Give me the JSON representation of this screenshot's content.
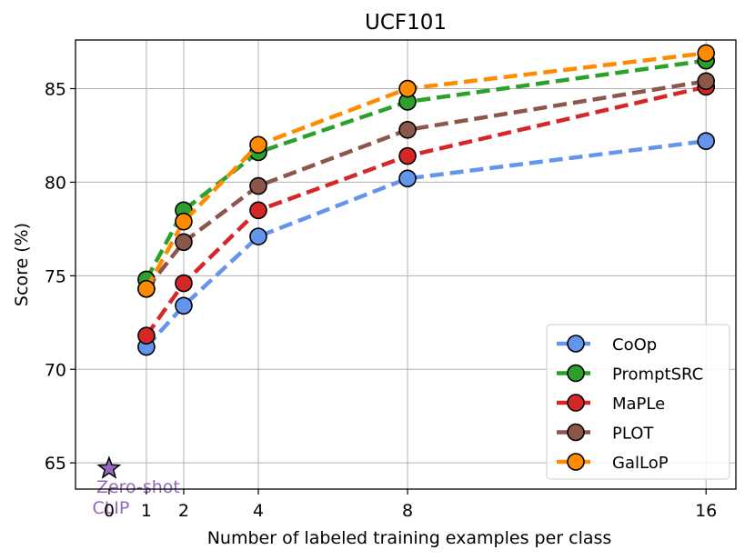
{
  "chart_data": {
    "type": "line",
    "title": "UCF101",
    "xlabel": "Number of labeled training examples per class",
    "ylabel": "Score (%)",
    "x": [
      1,
      2,
      4,
      8,
      16
    ],
    "xticks": [
      0,
      1,
      2,
      4,
      8,
      16
    ],
    "yticks": [
      65,
      70,
      75,
      80,
      85
    ],
    "xlim": [
      -0.9,
      16.8
    ],
    "ylim": [
      63.6,
      87.6
    ],
    "grid": true,
    "legend_position": "lower-right",
    "series": [
      {
        "name": "CoOp",
        "color": "#6495ED",
        "values": [
          71.2,
          73.4,
          77.1,
          80.2,
          82.2
        ]
      },
      {
        "name": "PromptSRC",
        "color": "#2CA02C",
        "values": [
          74.8,
          78.5,
          81.6,
          84.3,
          86.5
        ]
      },
      {
        "name": "MaPLe",
        "color": "#D62728",
        "values": [
          71.8,
          74.6,
          78.5,
          81.4,
          85.1
        ]
      },
      {
        "name": "PLOT",
        "color": "#8C564B",
        "values": [
          74.3,
          76.8,
          79.8,
          82.8,
          85.4
        ]
      },
      {
        "name": "GalLoP",
        "color": "#FF8C00",
        "values": [
          74.3,
          77.9,
          82.0,
          85.0,
          86.9
        ]
      }
    ],
    "zero_shot": {
      "label": "Zero-shot CLIP",
      "line1": "Zero-shot",
      "line2": "CLIP",
      "x": 0,
      "y": 64.7,
      "color": "#9467BD"
    }
  }
}
